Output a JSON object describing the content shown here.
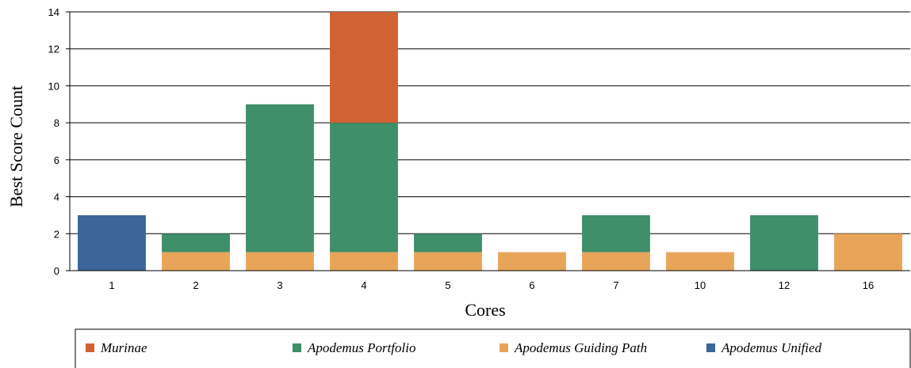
{
  "chart_data": {
    "type": "bar",
    "stacked": true,
    "title": "",
    "xlabel": "Cores",
    "ylabel": "Best Score Count",
    "categories": [
      "1",
      "2",
      "3",
      "4",
      "5",
      "6",
      "7",
      "10",
      "12",
      "16"
    ],
    "ylim": [
      0,
      14
    ],
    "yticks": [
      0,
      2,
      4,
      6,
      8,
      10,
      12,
      14
    ],
    "grid": true,
    "legend_position": "bottom",
    "series": [
      {
        "name": "Apodemus Unified",
        "color": "#3c6599",
        "values": [
          3,
          0,
          0,
          0,
          0,
          0,
          0,
          0,
          0,
          0
        ]
      },
      {
        "name": "Apodemus Guiding Path",
        "color": "#e8a55a",
        "values": [
          0,
          1,
          1,
          1,
          1,
          1,
          1,
          1,
          0,
          2
        ]
      },
      {
        "name": "Apodemus Portfolio",
        "color": "#3f8f6a",
        "values": [
          0,
          1,
          8,
          7,
          1,
          0,
          2,
          0,
          3,
          0
        ]
      },
      {
        "name": "Murinae",
        "color": "#d06233",
        "values": [
          0,
          0,
          0,
          6,
          0,
          0,
          0,
          0,
          0,
          0
        ]
      }
    ],
    "legend_order": [
      "Murinae",
      "Apodemus Portfolio",
      "Apodemus Guiding Path",
      "Apodemus Unified"
    ]
  }
}
